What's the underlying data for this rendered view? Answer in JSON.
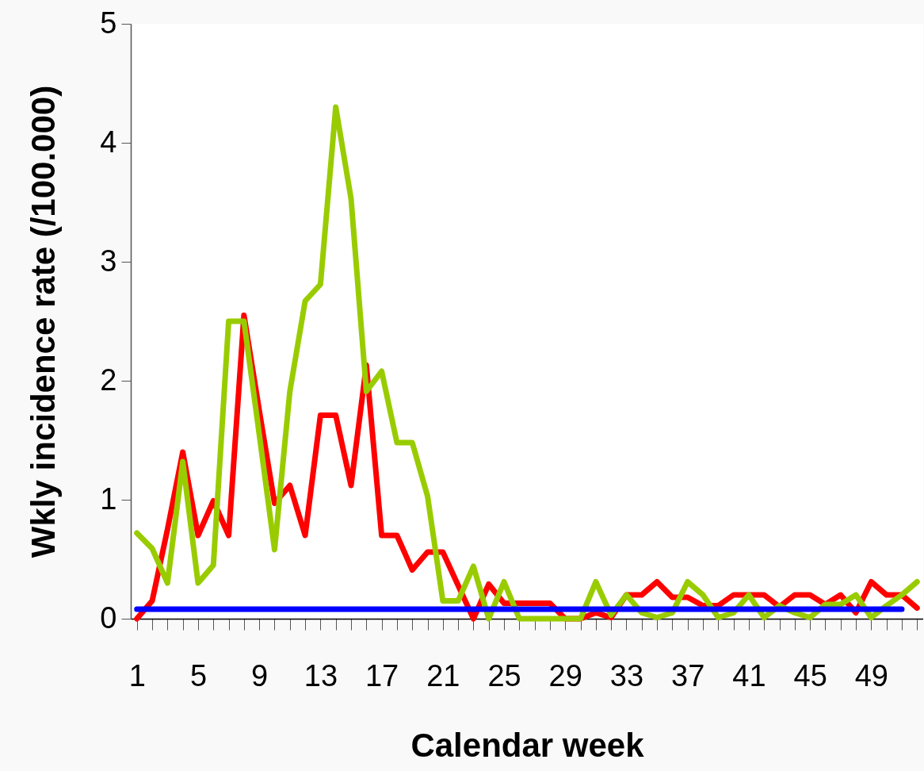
{
  "chart_data": {
    "type": "line",
    "xlabel": "Calendar week",
    "ylabel": "Wkly incidence rate  (/100.000)",
    "categories": [
      "1",
      null,
      null,
      null,
      "5",
      null,
      null,
      null,
      "9",
      null,
      null,
      null,
      "13",
      null,
      null,
      null,
      "17",
      null,
      null,
      null,
      "21",
      null,
      null,
      null,
      "25",
      null,
      null,
      null,
      "29",
      null,
      null,
      null,
      "33",
      null,
      null,
      null,
      "37",
      null,
      null,
      null,
      "41",
      null,
      null,
      null,
      "45",
      null,
      null,
      null,
      "49",
      null,
      null,
      null
    ],
    "series": [
      {
        "color": "#ff0000",
        "values": [
          0,
          0.15,
          0.75,
          1.4,
          0.7,
          0.99,
          0.7,
          2.55,
          1.75,
          0.97,
          1.12,
          0.7,
          1.71,
          1.71,
          1.12,
          2.13,
          0.7,
          0.7,
          0.41,
          0.56,
          0.56,
          0.28,
          0,
          0.29,
          0.13,
          0.13,
          0.13,
          0.13,
          0,
          0,
          0.05,
          0.01,
          0.2,
          0.2,
          0.31,
          0.18,
          0.18,
          0.11,
          0.11,
          0.2,
          0.2,
          0.2,
          0.1,
          0.2,
          0.2,
          0.12,
          0.2,
          0.05,
          0.31,
          0.2,
          0.2,
          0.09
        ]
      },
      {
        "color": "#99cc00",
        "values": [
          0.72,
          0.59,
          0.3,
          1.32,
          0.3,
          0.45,
          2.5,
          2.5,
          1.55,
          0.58,
          1.91,
          2.67,
          2.81,
          4.3,
          3.53,
          1.91,
          2.08,
          1.48,
          1.48,
          1.03,
          0.15,
          0.15,
          0.44,
          0,
          0.31,
          0,
          0,
          0,
          0,
          0,
          0.31,
          0.03,
          0.2,
          0.05,
          0.01,
          0.05,
          0.31,
          0.2,
          0.01,
          0.05,
          0.2,
          0.01,
          0.11,
          0.05,
          0.01,
          0.12,
          0.12,
          0.2,
          0.01,
          0.11,
          0.2,
          0.31
        ]
      },
      {
        "color": "#0000ff",
        "values": [
          0.08,
          0.08,
          0.08,
          0.08,
          0.08,
          0.08,
          0.08,
          0.08,
          0.08,
          0.08,
          0.08,
          0.08,
          0.08,
          0.08,
          0.08,
          0.08,
          0.08,
          0.08,
          0.08,
          0.08,
          0.08,
          0.08,
          0.08,
          0.08,
          0.08,
          0.08,
          0.08,
          0.08,
          0.08,
          0.08,
          0.08,
          0.08,
          0.08,
          0.08,
          0.08,
          0.08,
          0.08,
          0.08,
          0.08,
          0.08,
          0.08,
          0.08,
          0.08,
          0.08,
          0.08,
          0.08,
          0.08,
          0.08,
          0.08,
          0.08,
          0.08,
          null
        ]
      }
    ],
    "ylim": [
      0,
      5
    ],
    "yticks": [
      0,
      1,
      2,
      3,
      4,
      5
    ],
    "grid": false,
    "legend": false,
    "marker": "none"
  }
}
